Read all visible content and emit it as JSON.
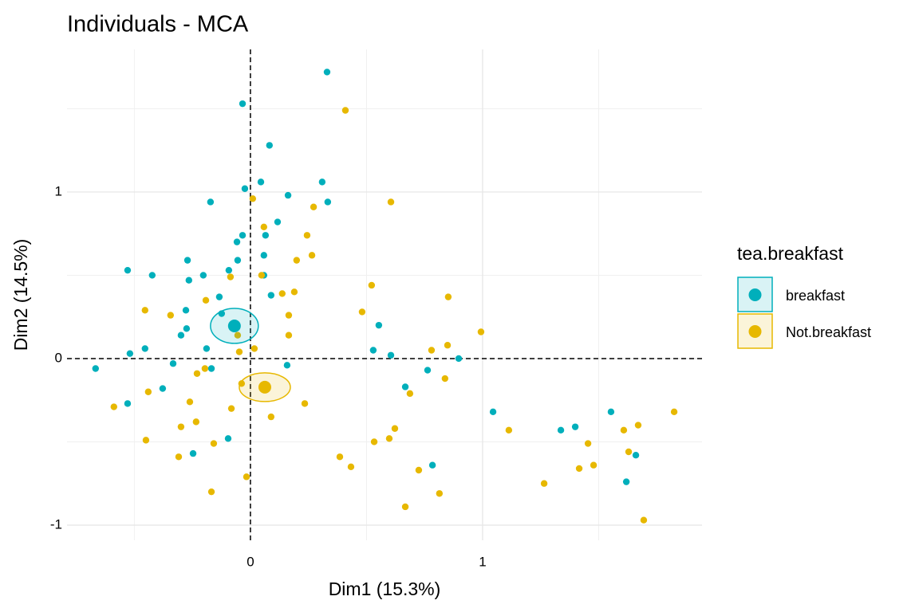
{
  "chart_data": {
    "type": "scatter",
    "title": "Individuals - MCA",
    "x_label": "Dim1 (15.3%)",
    "y_label": "Dim2 (14.5%)",
    "legend_title": "tea.breakfast",
    "legend_position": "right",
    "xlim": [
      -0.79,
      1.945
    ],
    "ylim": [
      -1.091,
      1.856
    ],
    "xticks": [
      0,
      1
    ],
    "yticks": [
      -1,
      0,
      1
    ],
    "x_minor_grid": [
      -0.5,
      0.5,
      1.5
    ],
    "y_minor_grid": [
      -0.5,
      0.5,
      1.5
    ],
    "grid": true,
    "zero_lines": true,
    "series": [
      {
        "name": "breakfast",
        "color": "#00AFBB",
        "x": [
          0.33,
          -0.034,
          0.082,
          -0.024,
          0.045,
          0.309,
          0.333,
          0.162,
          -0.172,
          0.065,
          0.117,
          -0.034,
          -0.058,
          -0.055,
          0.058,
          -0.093,
          0.058,
          -0.271,
          -0.529,
          -0.423,
          -0.265,
          -0.203,
          -0.134,
          0.089,
          -0.278,
          -0.124,
          -0.275,
          -0.299,
          -0.454,
          -0.519,
          -0.189,
          0.553,
          0.529,
          0.605,
          0.897,
          -0.333,
          -0.168,
          0.158,
          -0.667,
          -0.378,
          0.667,
          0.763,
          -0.529,
          1.045,
          1.337,
          1.399,
          1.553,
          1.66,
          1.619,
          -0.096,
          -0.247,
          0.784
        ],
        "y": [
          1.72,
          1.53,
          1.28,
          1.02,
          1.06,
          1.06,
          0.94,
          0.98,
          0.94,
          0.74,
          0.82,
          0.74,
          0.7,
          0.59,
          0.62,
          0.53,
          0.5,
          0.59,
          0.53,
          0.5,
          0.47,
          0.5,
          0.37,
          0.38,
          0.29,
          0.27,
          0.18,
          0.14,
          0.06,
          0.03,
          0.06,
          0.2,
          0.05,
          0.02,
          0.0,
          -0.03,
          -0.06,
          -0.04,
          -0.06,
          -0.18,
          -0.17,
          -0.07,
          -0.27,
          -0.32,
          -0.43,
          -0.41,
          -0.32,
          -0.58,
          -0.74,
          -0.48,
          -0.57,
          -0.64
        ],
        "center": {
          "x": -0.069,
          "y": 0.196
        },
        "ellipse": {
          "rx": 0.103,
          "ry": 0.105
        }
      },
      {
        "name": "Not.breakfast",
        "color": "#E7B800",
        "x": [
          0.409,
          0.605,
          0.01,
          0.272,
          0.244,
          0.058,
          0.199,
          0.265,
          0.048,
          -0.086,
          0.522,
          0.189,
          0.137,
          0.852,
          -0.192,
          -0.454,
          -0.344,
          0.165,
          0.481,
          0.993,
          0.165,
          -0.055,
          0.849,
          0.78,
          0.017,
          -0.048,
          -0.196,
          -0.23,
          0.838,
          -0.038,
          -0.44,
          0.687,
          -0.261,
          0.234,
          -0.082,
          -0.588,
          0.089,
          -0.234,
          -0.299,
          0.622,
          1.113,
          -0.158,
          -0.45,
          0.533,
          0.598,
          1.454,
          1.608,
          1.67,
          1.629,
          1.825,
          -0.309,
          0.385,
          0.433,
          0.725,
          1.478,
          1.416,
          1.265,
          -0.017,
          -0.168,
          0.814,
          0.667,
          1.694
        ],
        "y": [
          1.49,
          0.94,
          0.96,
          0.91,
          0.74,
          0.79,
          0.59,
          0.62,
          0.5,
          0.49,
          0.44,
          0.4,
          0.39,
          0.37,
          0.35,
          0.29,
          0.26,
          0.26,
          0.28,
          0.16,
          0.14,
          0.14,
          0.08,
          0.05,
          0.06,
          0.04,
          -0.06,
          -0.09,
          -0.12,
          -0.15,
          -0.2,
          -0.21,
          -0.26,
          -0.27,
          -0.3,
          -0.29,
          -0.35,
          -0.38,
          -0.41,
          -0.42,
          -0.43,
          -0.51,
          -0.49,
          -0.5,
          -0.48,
          -0.51,
          -0.43,
          -0.4,
          -0.56,
          -0.32,
          -0.59,
          -0.59,
          -0.65,
          -0.67,
          -0.64,
          -0.66,
          -0.75,
          -0.71,
          -0.8,
          -0.81,
          -0.89,
          -0.97
        ],
        "center": {
          "x": 0.062,
          "y": -0.172
        },
        "ellipse": {
          "rx": 0.11,
          "ry": 0.086
        }
      }
    ]
  }
}
